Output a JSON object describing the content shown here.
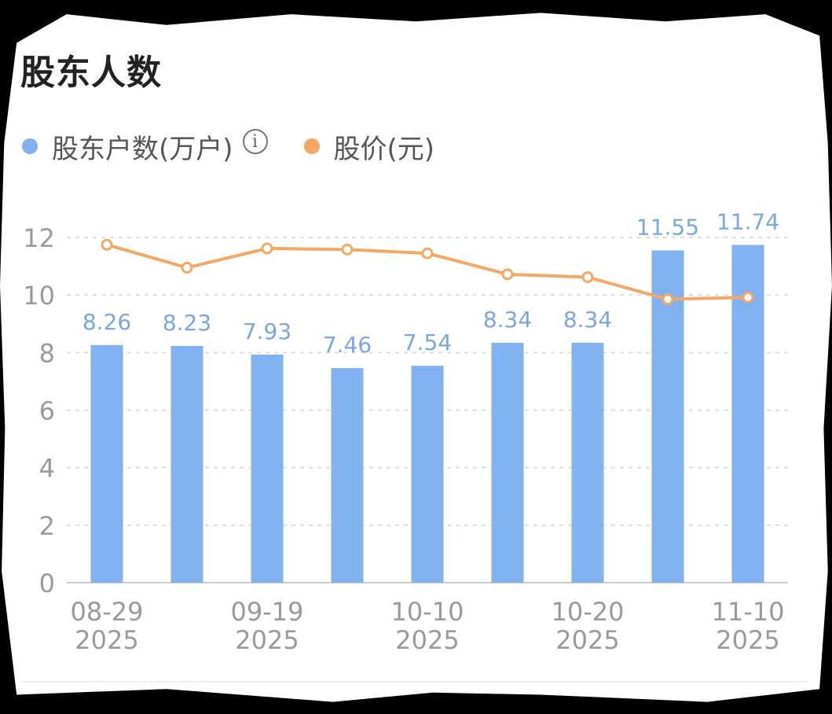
{
  "header": {
    "title": "股东人数"
  },
  "legend": {
    "holders_label": "股东户数(万户)",
    "price_label": "股价(元)",
    "info_icon": "info-circle-icon"
  },
  "colors": {
    "bar": "#80b1f0",
    "bar_label": "#7aa7e0",
    "line": "#f4a865",
    "grid": "#dddddd",
    "axis": "#9a9a9a",
    "background": "#ffffff"
  },
  "chart_data": {
    "type": "bar",
    "categories": [
      "08-29\n2025",
      "",
      "09-19\n2025",
      "",
      "10-10\n2025",
      "",
      "10-20\n2025",
      "",
      "11-10\n2025"
    ],
    "series": [
      {
        "name": "股东户数(万户)",
        "type": "bar",
        "values": [
          8.26,
          8.23,
          7.93,
          7.46,
          7.54,
          8.34,
          8.34,
          11.55,
          11.74
        ],
        "data_labels": [
          "8.26",
          "8.23",
          "7.93",
          "7.46",
          "7.54",
          "8.34",
          "8.34",
          "11.55",
          "11.74"
        ]
      },
      {
        "name": "股价(元)",
        "type": "line",
        "values": [
          11.75,
          10.95,
          11.62,
          11.58,
          11.45,
          10.72,
          10.62,
          9.85,
          9.92
        ]
      }
    ],
    "yticks": [
      "0",
      "2",
      "4",
      "6",
      "8",
      "10",
      "12"
    ],
    "ylim": [
      0,
      12
    ],
    "grid": true,
    "legend_position": "top-left"
  }
}
